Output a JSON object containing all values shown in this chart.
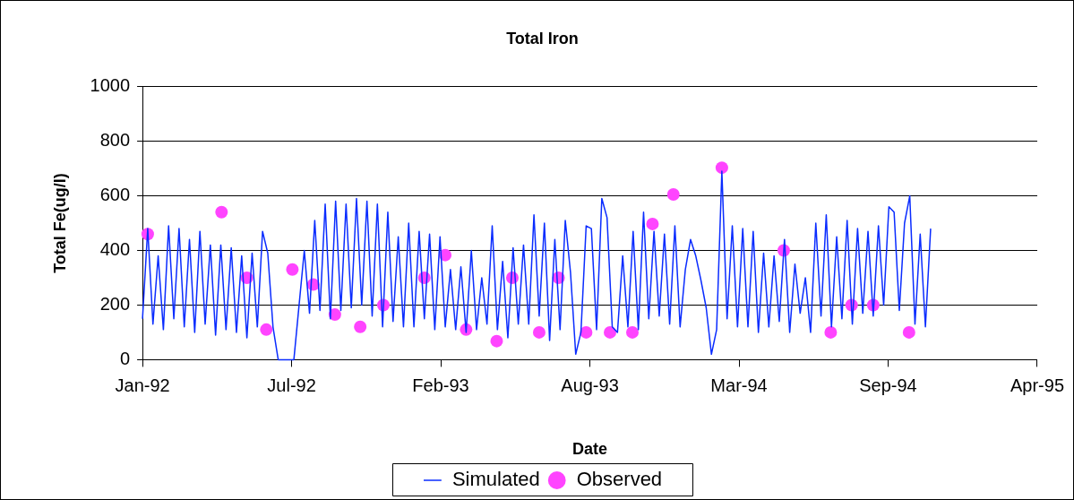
{
  "chart_data": {
    "type": "line",
    "title": "Total Iron",
    "xlabel": "Date",
    "ylabel": "Total Fe(ug/l)",
    "xlim": [
      "1992-01-01",
      "1995-04-15"
    ],
    "xticks": [
      {
        "value": "1992-01-01",
        "label": "Jan-92"
      },
      {
        "value": "1992-07-19",
        "label": "Jul-92"
      },
      {
        "value": "1993-02-04",
        "label": "Feb-93"
      },
      {
        "value": "1993-08-23",
        "label": "Aug-93"
      },
      {
        "value": "1994-03-11",
        "label": "Mar-94"
      },
      {
        "value": "1994-09-27",
        "label": "Sep-94"
      },
      {
        "value": "1995-04-15",
        "label": "Apr-95"
      }
    ],
    "ylim": [
      0,
      1000
    ],
    "yticks": [
      0,
      200,
      400,
      600,
      800,
      1000
    ],
    "grid": "y",
    "legend": "bottom",
    "series": [
      {
        "name": "Simulated",
        "type": "line",
        "color": "#0a2cff",
        "marker": "none",
        "line_style": "solid",
        "x": [
          "1992-01-01",
          "1992-01-08",
          "1992-01-15",
          "1992-01-22",
          "1992-01-29",
          "1992-02-05",
          "1992-02-12",
          "1992-02-19",
          "1992-02-26",
          "1992-03-04",
          "1992-03-11",
          "1992-03-18",
          "1992-03-25",
          "1992-04-01",
          "1992-04-08",
          "1992-04-15",
          "1992-04-22",
          "1992-04-29",
          "1992-05-06",
          "1992-05-13",
          "1992-05-20",
          "1992-05-27",
          "1992-06-03",
          "1992-06-10",
          "1992-06-17",
          "1992-06-24",
          "1992-07-01",
          "1992-07-22",
          "1992-07-29",
          "1992-08-05",
          "1992-08-12",
          "1992-08-19",
          "1992-08-26",
          "1992-09-02",
          "1992-09-09",
          "1992-09-16",
          "1992-09-23",
          "1992-09-30",
          "1992-10-07",
          "1992-10-14",
          "1992-10-21",
          "1992-10-28",
          "1992-11-04",
          "1992-11-11",
          "1992-11-18",
          "1992-11-25",
          "1992-12-02",
          "1992-12-09",
          "1992-12-16",
          "1992-12-23",
          "1992-12-30",
          "1993-01-06",
          "1993-01-13",
          "1993-01-20",
          "1993-01-27",
          "1993-02-03",
          "1993-02-10",
          "1993-02-17",
          "1993-02-24",
          "1993-03-03",
          "1993-03-10",
          "1993-03-17",
          "1993-03-24",
          "1993-03-31",
          "1993-04-07",
          "1993-04-14",
          "1993-04-21",
          "1993-04-28",
          "1993-05-05",
          "1993-05-12",
          "1993-05-19",
          "1993-05-26",
          "1993-06-02",
          "1993-06-09",
          "1993-06-16",
          "1993-06-23",
          "1993-06-30",
          "1993-07-07",
          "1993-07-14",
          "1993-07-21",
          "1993-07-28",
          "1993-08-04",
          "1993-08-11",
          "1993-08-18",
          "1993-08-25",
          "1993-09-01",
          "1993-09-08",
          "1993-09-15",
          "1993-09-22",
          "1993-09-29",
          "1993-10-06",
          "1993-10-13",
          "1993-10-20",
          "1993-10-27",
          "1993-11-03",
          "1993-11-10",
          "1993-11-17",
          "1993-11-24",
          "1993-12-01",
          "1993-12-08",
          "1993-12-15",
          "1993-12-22",
          "1993-12-29",
          "1994-01-05",
          "1994-01-12",
          "1994-01-19",
          "1994-01-26",
          "1994-02-02",
          "1994-02-09",
          "1994-02-16",
          "1994-02-23",
          "1994-03-02",
          "1994-03-09",
          "1994-03-16",
          "1994-03-23",
          "1994-03-30",
          "1994-04-06",
          "1994-04-13",
          "1994-04-20",
          "1994-04-27",
          "1994-05-04",
          "1994-05-11",
          "1994-05-18",
          "1994-05-25",
          "1994-06-01",
          "1994-06-08",
          "1994-06-15",
          "1994-06-22",
          "1994-06-29",
          "1994-07-06",
          "1994-07-13",
          "1994-07-20",
          "1994-07-27",
          "1994-08-03",
          "1994-08-10",
          "1994-08-17",
          "1994-08-24",
          "1994-08-31",
          "1994-09-07",
          "1994-09-14",
          "1994-09-21",
          "1994-09-28",
          "1994-10-05",
          "1994-10-12",
          "1994-10-19",
          "1994-10-26",
          "1994-11-02",
          "1994-11-09",
          "1994-11-16",
          "1994-11-23"
        ],
        "values": [
          150,
          480,
          130,
          380,
          110,
          490,
          150,
          480,
          120,
          440,
          100,
          470,
          130,
          420,
          90,
          420,
          110,
          410,
          100,
          380,
          80,
          390,
          120,
          470,
          390,
          120,
          0,
          0,
          200,
          400,
          170,
          510,
          180,
          570,
          150,
          580,
          180,
          570,
          190,
          590,
          200,
          580,
          160,
          570,
          120,
          540,
          140,
          450,
          120,
          500,
          120,
          470,
          150,
          460,
          110,
          450,
          120,
          330,
          110,
          340,
          100,
          400,
          110,
          300,
          130,
          490,
          110,
          360,
          80,
          410,
          130,
          420,
          130,
          530,
          160,
          500,
          70,
          440,
          110,
          510,
          320,
          20,
          100,
          490,
          480,
          110,
          590,
          520,
          120,
          100,
          380,
          120,
          470,
          110,
          540,
          150,
          470,
          160,
          460,
          130,
          490,
          120,
          330,
          440,
          380,
          290,
          190,
          20,
          110,
          690,
          150,
          490,
          120,
          480,
          120,
          470,
          100,
          390,
          120,
          380,
          140,
          440,
          100,
          350,
          170,
          300,
          100,
          500,
          160,
          530,
          120,
          450,
          150,
          510,
          130,
          480,
          170,
          470,
          160,
          490,
          200,
          560,
          540,
          180,
          500,
          600,
          130,
          460,
          120,
          480
        ]
      },
      {
        "name": "Observed",
        "type": "scatter",
        "color": "#ff44ff",
        "marker": "circle",
        "x": [
          "1992-01-08",
          "1992-04-16",
          "1992-05-20",
          "1992-06-15",
          "1992-07-20",
          "1992-08-17",
          "1992-09-15",
          "1992-10-19",
          "1992-11-19",
          "1993-01-13",
          "1993-02-10",
          "1993-03-10",
          "1993-04-20",
          "1993-05-11",
          "1993-06-16",
          "1993-07-12",
          "1993-08-18",
          "1993-09-19",
          "1993-10-19",
          "1993-11-15",
          "1993-12-13",
          "1994-02-16",
          "1994-05-10",
          "1994-07-12",
          "1994-08-09",
          "1994-09-07",
          "1994-10-25"
        ],
        "values": [
          460,
          540,
          300,
          110,
          330,
          275,
          165,
          120,
          200,
          300,
          383,
          110,
          68,
          300,
          100,
          300,
          100,
          100,
          100,
          497,
          605,
          703,
          400,
          100,
          200,
          200,
          100
        ]
      }
    ]
  }
}
